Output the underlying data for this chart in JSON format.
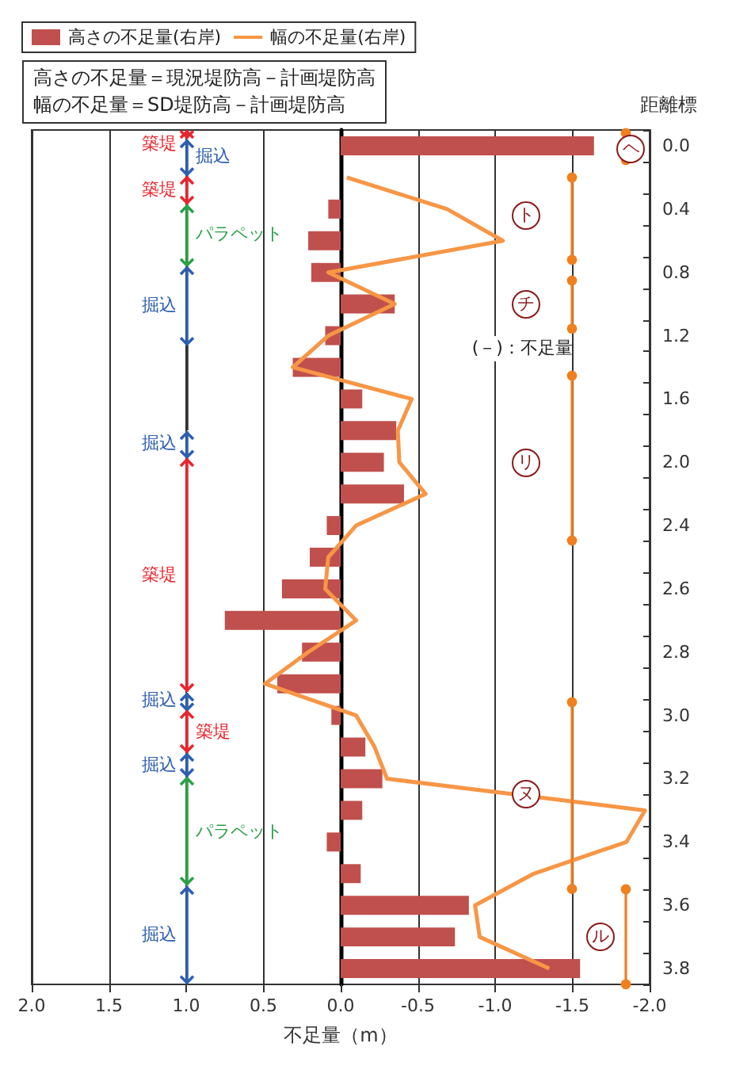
{
  "chart_data": {
    "type": "bar",
    "orientation": "horizontal",
    "categories": [
      "0.0",
      null,
      "0.4",
      null,
      "0.8",
      null,
      "1.2",
      null,
      "1.6",
      null,
      "2.0",
      null,
      "2.4",
      null,
      "2.6",
      null,
      "2.8",
      null,
      "3.0",
      null,
      "3.2",
      null,
      "3.4",
      null,
      "3.6",
      null,
      "3.8"
    ],
    "series": [
      {
        "name": "高さの不足量(右岸)",
        "color": "#c0504d",
        "values": [
          -1.64,
          null,
          0.08,
          0.21,
          0.19,
          -0.35,
          0.1,
          0.31,
          -0.14,
          -0.36,
          -0.28,
          -0.41,
          0.09,
          0.2,
          0.38,
          0.75,
          0.25,
          0.41,
          0.06,
          -0.16,
          -0.27,
          -0.14,
          0.09,
          -0.13,
          -0.83,
          -0.74,
          -1.55
        ]
      },
      {
        "name": "幅の不足量(右岸)",
        "type": "line",
        "marker": "none",
        "color": "#f79646",
        "values": [
          null,
          -0.04,
          -0.69,
          -1.05,
          0.08,
          -0.35,
          0.08,
          0.31,
          -0.46,
          -0.37,
          -0.38,
          -0.55,
          -0.1,
          0.08,
          0.1,
          -0.1,
          0.21,
          0.49,
          -0.1,
          -0.22,
          -0.3,
          -1.97,
          -1.85,
          -1.25,
          -0.87,
          -0.9,
          -1.35
        ]
      }
    ],
    "xlim": [
      2.0,
      -2.0
    ],
    "xticks": [
      {
        "value": 2,
        "label": "2.0"
      },
      {
        "value": 1.5,
        "label": "1.5"
      },
      {
        "value": 1,
        "label": "1.0"
      },
      {
        "value": 0.5,
        "label": "0.5"
      },
      {
        "value": 0,
        "label": "0.0"
      },
      {
        "value": -0.5,
        "label": "-0.5"
      },
      {
        "value": -1,
        "label": "-1.0"
      },
      {
        "value": -1.5,
        "label": "-1.5"
      },
      {
        "value": -2,
        "label": "-2.0"
      }
    ],
    "xlabel": "不足量（m）",
    "ylabel": "距離標",
    "grid": "x",
    "legend": "top left",
    "annotations": [
      "高さの不足量＝現況堤防高－計画堤防高",
      "幅の不足量＝SD堤防高－計画堤防高",
      "築堤",
      "掘込",
      "築堤",
      "パラペット",
      "掘込",
      "掘込",
      "築堤",
      "掘込",
      "築堤",
      "掘込",
      "パラペット",
      "掘込",
      "ヘ",
      "ト",
      "チ",
      "リ",
      "ヌ",
      "ル",
      "(－)：不足量"
    ]
  }
}
